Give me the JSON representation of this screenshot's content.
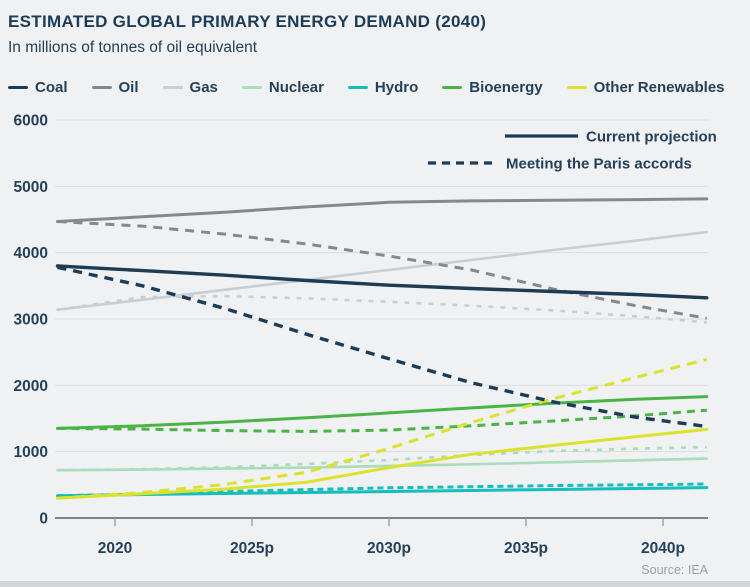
{
  "header": {
    "title": "ESTIMATED GLOBAL PRIMARY ENERGY DEMAND (2040)",
    "subtitle": "In millions of tonnes of oil equivalent"
  },
  "source": "Source: IEA",
  "chart_data": {
    "type": "line",
    "title": "ESTIMATED GLOBAL PRIMARY ENERGY DEMAND (2040)",
    "ylabel": "In millions of tonnes of oil equivalent",
    "ylim": [
      0,
      6000
    ],
    "grid": "horizontal",
    "yticks": [
      0,
      1000,
      2000,
      3000,
      4000,
      5000,
      6000
    ],
    "xticks": [
      {
        "label": "2020",
        "year": 2020
      },
      {
        "label": "2025p",
        "year": 2025
      },
      {
        "label": "2030p",
        "year": 2030
      },
      {
        "label": "2035p",
        "year": 2035
      },
      {
        "label": "2040p",
        "year": 2040
      }
    ],
    "scenario_legend": [
      {
        "label": "Current projection",
        "style": "solid"
      },
      {
        "label": "Meeting the Paris accords",
        "style": "dashed"
      }
    ],
    "x_years": [
      2017.9,
      2021,
      2024,
      2027,
      2030,
      2033,
      2036,
      2039,
      2041.6
    ],
    "draw_order": [
      2,
      1,
      3,
      4,
      5,
      6,
      0
    ],
    "series": [
      {
        "name": "Coal",
        "color": "#1c3b55",
        "width": 3.4,
        "dash": "9 7",
        "current": [
          3800,
          3730,
          3660,
          3580,
          3510,
          3460,
          3415,
          3370,
          3320
        ],
        "paris": [
          3780,
          3500,
          3160,
          2770,
          2400,
          2040,
          1750,
          1520,
          1380
        ]
      },
      {
        "name": "Oil",
        "color": "#85898c",
        "width": 3,
        "dash": "9 7",
        "current": [
          4470,
          4540,
          4610,
          4690,
          4760,
          4780,
          4790,
          4800,
          4810
        ],
        "paris": [
          4470,
          4400,
          4280,
          4130,
          3950,
          3740,
          3450,
          3200,
          3010
        ]
      },
      {
        "name": "Gas",
        "color": "#c9ced2",
        "width": 2.6,
        "dash": "5 7",
        "current": [
          3140,
          3290,
          3440,
          3590,
          3740,
          3890,
          4040,
          4180,
          4310
        ],
        "paris": [
          3140,
          3330,
          3345,
          3310,
          3260,
          3200,
          3130,
          3040,
          2950
        ]
      },
      {
        "name": "Nuclear",
        "color": "#a9dcba",
        "width": 2.6,
        "dash": "5 7",
        "current": [
          720,
          730,
          745,
          760,
          785,
          810,
          840,
          870,
          895
        ],
        "paris": [
          720,
          735,
          765,
          815,
          875,
          950,
          1010,
          1045,
          1070
        ]
      },
      {
        "name": "Hydro",
        "color": "#16bdbd",
        "width": 3,
        "dash": "6 4",
        "current": [
          335,
          355,
          370,
          385,
          400,
          415,
          430,
          445,
          458
        ],
        "paris": [
          335,
          362,
          398,
          428,
          455,
          472,
          488,
          500,
          512
        ]
      },
      {
        "name": "Bioenergy",
        "color": "#4bb447",
        "width": 3,
        "dash": "8 6",
        "current": [
          1350,
          1390,
          1445,
          1510,
          1585,
          1660,
          1730,
          1790,
          1830
        ],
        "paris": [
          1350,
          1340,
          1318,
          1305,
          1325,
          1390,
          1462,
          1540,
          1625
        ]
      },
      {
        "name": "Other Renewables",
        "color": "#dbe22e",
        "width": 3,
        "dash": "10 7",
        "current": [
          300,
          365,
          435,
          540,
          760,
          960,
          1095,
          1225,
          1335
        ],
        "paris": [
          300,
          385,
          505,
          690,
          1050,
          1440,
          1800,
          2120,
          2390
        ]
      }
    ]
  }
}
